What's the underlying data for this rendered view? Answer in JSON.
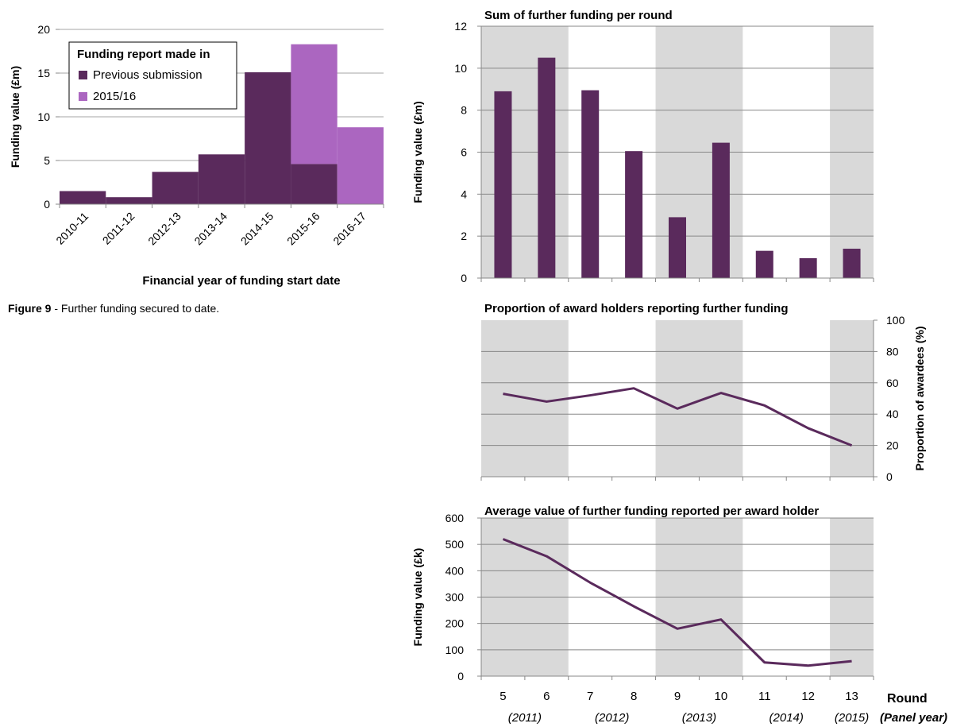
{
  "figure_caption": {
    "label": "Figure 9",
    "text": " - Further funding secured to date."
  },
  "colors": {
    "previous": "#5a2a5c",
    "current": "#ab66c0",
    "line": "#5a2a5c",
    "band": "#d9d9d9",
    "grid": "#a6a6a6"
  },
  "chart_data": [
    {
      "id": "left",
      "type": "bar",
      "stacked": true,
      "categories": [
        "2010-11",
        "2011-12",
        "2012-13",
        "2013-14",
        "2014-15",
        "2015-16",
        "2016-17"
      ],
      "series": [
        {
          "name": "Previous submission",
          "values": [
            1.5,
            0.8,
            3.7,
            5.7,
            15.1,
            4.6,
            0
          ]
        },
        {
          "name": "2015/16",
          "values": [
            0,
            0,
            0,
            0,
            0,
            13.7,
            8.8
          ]
        }
      ],
      "xlabel": "Financial year of funding start date",
      "ylabel": "Funding value (£m)",
      "ylim": [
        0,
        20
      ],
      "yticks": [
        0,
        5,
        10,
        15,
        20
      ],
      "legend_title": "Funding report made in",
      "legend_position": "top-left",
      "grid": true
    },
    {
      "id": "sum",
      "type": "bar",
      "title": "Sum of further funding per round",
      "categories": [
        "5",
        "6",
        "7",
        "8",
        "9",
        "10",
        "11",
        "12",
        "13"
      ],
      "values": [
        8.9,
        10.5,
        8.95,
        6.05,
        2.9,
        6.45,
        1.3,
        0.95,
        1.4
      ],
      "ylabel": "Funding value (£m)",
      "ylim": [
        0,
        12
      ],
      "yticks": [
        0,
        2,
        4,
        6,
        8,
        10,
        12
      ],
      "grid": true
    },
    {
      "id": "proportion",
      "type": "line",
      "title": "Proportion of award holders reporting further funding",
      "categories": [
        "5",
        "6",
        "7",
        "8",
        "9",
        "10",
        "11",
        "12",
        "13"
      ],
      "values": [
        53,
        48,
        52,
        56.5,
        43.5,
        53.5,
        45.5,
        31,
        20
      ],
      "ylabel": "Proportion of awardees (%)",
      "ylim": [
        0,
        100
      ],
      "yticks": [
        0,
        20,
        40,
        60,
        80,
        100
      ],
      "yaxis_side": "right",
      "grid": true
    },
    {
      "id": "average",
      "type": "line",
      "title": "Average value of further funding reported per award holder",
      "categories": [
        "5",
        "6",
        "7",
        "8",
        "9",
        "10",
        "11",
        "12",
        "13"
      ],
      "values": [
        520,
        455,
        355,
        265,
        180,
        215,
        52,
        40,
        57
      ],
      "ylabel": "Funding value (£k)",
      "ylim": [
        0,
        600
      ],
      "yticks": [
        0,
        100,
        200,
        300,
        400,
        500,
        600
      ],
      "xlabel": "Round",
      "xlabel2": "(Panel year)",
      "panel_years": [
        "(2011)",
        "(2012)",
        "(2013)",
        "(2014)",
        "(2015)"
      ],
      "grid": true
    }
  ]
}
